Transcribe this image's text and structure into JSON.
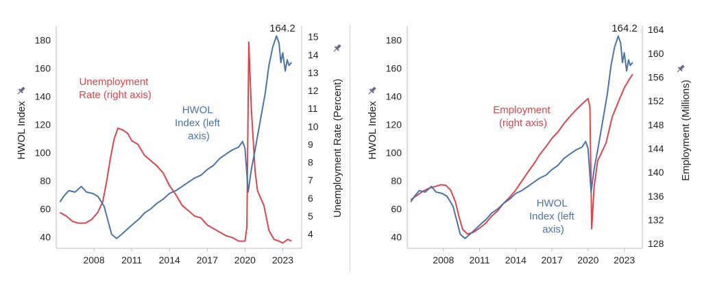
{
  "colors": {
    "hwol": "#4a72aa",
    "second": "#e1424a",
    "axis": "#bdbdbd",
    "text": "#222222"
  },
  "icons": {
    "axis_pin": "pin-icon"
  },
  "chart_data": [
    {
      "type": "line",
      "x_tick_labels": [
        "2008",
        "2011",
        "2014",
        "2017",
        "2020",
        "2023"
      ],
      "x_ticks": [
        2008,
        2011,
        2014,
        2017,
        2020,
        2023
      ],
      "xlim": [
        2005,
        2024.5
      ],
      "left_axis": {
        "label": "HWOL Index",
        "ylim": [
          32,
          190
        ],
        "ticks": [
          40,
          60,
          80,
          100,
          120,
          140,
          160,
          180
        ]
      },
      "right_axis": {
        "label": "Unemployment Rate (Percent)",
        "ylim": [
          3.2,
          15.6
        ],
        "ticks": [
          4,
          5,
          6,
          7,
          8,
          9,
          10,
          11,
          12,
          13,
          14,
          15
        ]
      },
      "series": [
        {
          "name": "HWOL Index (left axis)",
          "axis": "left",
          "color": "#4a72aa",
          "points": [
            [
              2005.3,
              65
            ],
            [
              2005.6,
              69
            ],
            [
              2006.0,
              73
            ],
            [
              2006.5,
              72
            ],
            [
              2007.0,
              76
            ],
            [
              2007.4,
              72
            ],
            [
              2007.9,
              71
            ],
            [
              2008.3,
              69
            ],
            [
              2008.8,
              62
            ],
            [
              2009.1,
              52
            ],
            [
              2009.4,
              42
            ],
            [
              2009.8,
              39
            ],
            [
              2010.2,
              42
            ],
            [
              2010.7,
              46
            ],
            [
              2011.2,
              50
            ],
            [
              2011.6,
              53
            ],
            [
              2012.0,
              57
            ],
            [
              2012.5,
              60
            ],
            [
              2013.0,
              64
            ],
            [
              2013.5,
              67
            ],
            [
              2014.0,
              71
            ],
            [
              2014.5,
              73
            ],
            [
              2015.0,
              76
            ],
            [
              2015.5,
              79
            ],
            [
              2016.0,
              82
            ],
            [
              2016.5,
              84
            ],
            [
              2017.0,
              88
            ],
            [
              2017.5,
              91
            ],
            [
              2018.0,
              96
            ],
            [
              2018.5,
              99
            ],
            [
              2019.0,
              102
            ],
            [
              2019.5,
              104
            ],
            [
              2019.8,
              108
            ],
            [
              2020.0,
              103
            ],
            [
              2020.25,
              72
            ],
            [
              2020.5,
              88
            ],
            [
              2020.8,
              102
            ],
            [
              2021.2,
              122
            ],
            [
              2021.6,
              142
            ],
            [
              2021.9,
              162
            ],
            [
              2022.2,
              175
            ],
            [
              2022.5,
              183
            ],
            [
              2022.7,
              178
            ],
            [
              2022.85,
              164
            ],
            [
              2023.0,
              171
            ],
            [
              2023.2,
              158
            ],
            [
              2023.35,
              166
            ],
            [
              2023.5,
              162
            ],
            [
              2023.7,
              164.2
            ]
          ]
        },
        {
          "name": "Unemployment Rate (right axis)",
          "axis": "right",
          "color": "#e1424a",
          "points": [
            [
              2005.3,
              5.2
            ],
            [
              2005.8,
              5.0
            ],
            [
              2006.3,
              4.7
            ],
            [
              2006.8,
              4.6
            ],
            [
              2007.3,
              4.6
            ],
            [
              2007.8,
              4.8
            ],
            [
              2008.3,
              5.2
            ],
            [
              2008.7,
              5.8
            ],
            [
              2009.0,
              6.9
            ],
            [
              2009.3,
              8.2
            ],
            [
              2009.6,
              9.3
            ],
            [
              2009.9,
              9.9
            ],
            [
              2010.3,
              9.8
            ],
            [
              2010.7,
              9.6
            ],
            [
              2011.0,
              9.2
            ],
            [
              2011.5,
              9.0
            ],
            [
              2012.0,
              8.4
            ],
            [
              2012.5,
              8.1
            ],
            [
              2013.0,
              7.8
            ],
            [
              2013.5,
              7.4
            ],
            [
              2014.0,
              6.7
            ],
            [
              2014.5,
              6.2
            ],
            [
              2015.0,
              5.6
            ],
            [
              2015.5,
              5.3
            ],
            [
              2016.0,
              5.0
            ],
            [
              2016.5,
              4.9
            ],
            [
              2017.0,
              4.5
            ],
            [
              2017.5,
              4.3
            ],
            [
              2018.0,
              4.1
            ],
            [
              2018.5,
              3.9
            ],
            [
              2019.0,
              3.8
            ],
            [
              2019.5,
              3.6
            ],
            [
              2020.0,
              3.6
            ],
            [
              2020.15,
              4.4
            ],
            [
              2020.3,
              14.7
            ],
            [
              2020.5,
              11.0
            ],
            [
              2020.8,
              7.5
            ],
            [
              2021.0,
              6.4
            ],
            [
              2021.5,
              5.6
            ],
            [
              2021.9,
              4.2
            ],
            [
              2022.3,
              3.7
            ],
            [
              2022.7,
              3.6
            ],
            [
              2023.0,
              3.5
            ],
            [
              2023.4,
              3.7
            ],
            [
              2023.7,
              3.6
            ]
          ]
        }
      ],
      "annotations": {
        "series2": [
          "Unemployment",
          "Rate (right axis)"
        ],
        "series1": [
          "HWOL",
          "Index (left",
          "axis)"
        ],
        "peak": "164.2"
      }
    },
    {
      "type": "line",
      "x_tick_labels": [
        "2008",
        "2011",
        "2014",
        "2017",
        "2020",
        "2023"
      ],
      "x_ticks": [
        2008,
        2011,
        2014,
        2017,
        2020,
        2023
      ],
      "xlim": [
        2005,
        2024.5
      ],
      "left_axis": {
        "label": "HWOL Index",
        "ylim": [
          32,
          190
        ],
        "ticks": [
          40,
          60,
          80,
          100,
          120,
          140,
          160,
          180
        ]
      },
      "right_axis": {
        "label": "Employment (Millions)",
        "ylim": [
          127.2,
          164.6
        ],
        "ticks": [
          128,
          132,
          136,
          140,
          144,
          148,
          152,
          156,
          160,
          164
        ]
      },
      "series": [
        {
          "name": "HWOL Index (left axis)",
          "axis": "left",
          "color": "#4a72aa",
          "points": [
            [
              2005.3,
              65
            ],
            [
              2005.6,
              69
            ],
            [
              2006.0,
              73
            ],
            [
              2006.5,
              72
            ],
            [
              2007.0,
              76
            ],
            [
              2007.4,
              72
            ],
            [
              2007.9,
              71
            ],
            [
              2008.3,
              69
            ],
            [
              2008.8,
              62
            ],
            [
              2009.1,
              52
            ],
            [
              2009.4,
              42
            ],
            [
              2009.8,
              39
            ],
            [
              2010.2,
              42
            ],
            [
              2010.7,
              46
            ],
            [
              2011.2,
              50
            ],
            [
              2011.6,
              53
            ],
            [
              2012.0,
              57
            ],
            [
              2012.5,
              60
            ],
            [
              2013.0,
              64
            ],
            [
              2013.5,
              67
            ],
            [
              2014.0,
              71
            ],
            [
              2014.5,
              73
            ],
            [
              2015.0,
              76
            ],
            [
              2015.5,
              79
            ],
            [
              2016.0,
              82
            ],
            [
              2016.5,
              84
            ],
            [
              2017.0,
              88
            ],
            [
              2017.5,
              91
            ],
            [
              2018.0,
              96
            ],
            [
              2018.5,
              99
            ],
            [
              2019.0,
              102
            ],
            [
              2019.5,
              104
            ],
            [
              2019.8,
              108
            ],
            [
              2020.0,
              103
            ],
            [
              2020.25,
              72
            ],
            [
              2020.5,
              88
            ],
            [
              2020.8,
              102
            ],
            [
              2021.2,
              122
            ],
            [
              2021.6,
              142
            ],
            [
              2021.9,
              162
            ],
            [
              2022.2,
              175
            ],
            [
              2022.5,
              183
            ],
            [
              2022.7,
              178
            ],
            [
              2022.85,
              164
            ],
            [
              2023.0,
              171
            ],
            [
              2023.2,
              158
            ],
            [
              2023.35,
              166
            ],
            [
              2023.5,
              162
            ],
            [
              2023.7,
              164.2
            ]
          ]
        },
        {
          "name": "Employment (right axis)",
          "axis": "right",
          "color": "#e1424a",
          "points": [
            [
              2005.3,
              135.4
            ],
            [
              2005.8,
              136.1
            ],
            [
              2006.3,
              136.8
            ],
            [
              2006.8,
              137.3
            ],
            [
              2007.3,
              137.6
            ],
            [
              2007.8,
              137.9
            ],
            [
              2008.2,
              137.8
            ],
            [
              2008.6,
              137.0
            ],
            [
              2009.0,
              135.0
            ],
            [
              2009.3,
              132.5
            ],
            [
              2009.6,
              130.4
            ],
            [
              2010.0,
              129.6
            ],
            [
              2010.5,
              129.9
            ],
            [
              2011.0,
              130.6
            ],
            [
              2011.5,
              131.4
            ],
            [
              2012.0,
              132.6
            ],
            [
              2012.5,
              133.5
            ],
            [
              2013.0,
              134.8
            ],
            [
              2013.5,
              135.8
            ],
            [
              2014.0,
              137.0
            ],
            [
              2014.5,
              138.5
            ],
            [
              2015.0,
              140.0
            ],
            [
              2015.5,
              141.4
            ],
            [
              2016.0,
              143.0
            ],
            [
              2016.5,
              144.3
            ],
            [
              2017.0,
              145.7
            ],
            [
              2017.5,
              146.8
            ],
            [
              2018.0,
              148.2
            ],
            [
              2018.5,
              149.4
            ],
            [
              2019.0,
              150.5
            ],
            [
              2019.5,
              151.5
            ],
            [
              2020.0,
              152.4
            ],
            [
              2020.15,
              151.0
            ],
            [
              2020.3,
              130.5
            ],
            [
              2020.5,
              137.5
            ],
            [
              2020.8,
              142.0
            ],
            [
              2021.0,
              142.8
            ],
            [
              2021.5,
              145.0
            ],
            [
              2022.0,
              149.3
            ],
            [
              2022.5,
              151.8
            ],
            [
              2023.0,
              154.2
            ],
            [
              2023.4,
              155.6
            ],
            [
              2023.7,
              156.5
            ]
          ]
        }
      ],
      "annotations": {
        "series2": [
          "Employment",
          "(right axis)"
        ],
        "series1": [
          "HWOL",
          "Index (left",
          "axis)"
        ],
        "peak": "164.2"
      }
    }
  ]
}
